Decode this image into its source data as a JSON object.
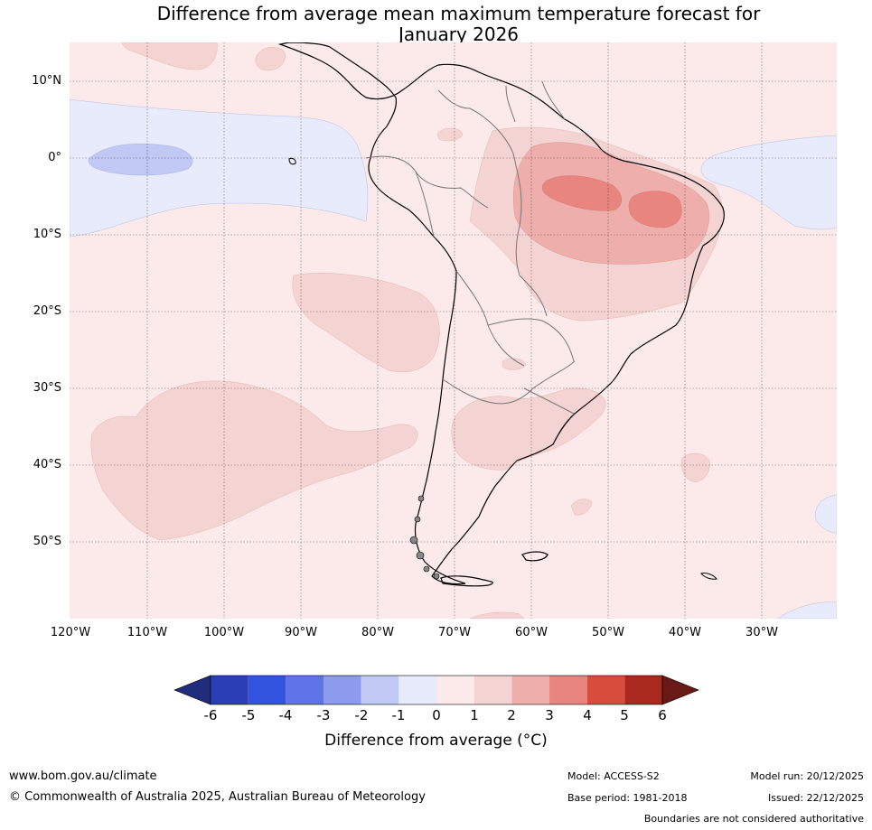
{
  "title": {
    "line1": "Difference from average mean maximum temperature forecast for",
    "line2": "January 2026"
  },
  "map": {
    "region": "South America",
    "lat_labels": [
      "10°N",
      "0°",
      "10°S",
      "20°S",
      "30°S",
      "40°S",
      "50°S"
    ],
    "lon_labels": [
      "120°W",
      "110°W",
      "100°W",
      "90°W",
      "80°W",
      "70°W",
      "60°W",
      "50°W",
      "40°W",
      "30°W"
    ],
    "lat_values": [
      10,
      0,
      -10,
      -20,
      -30,
      -40,
      -50
    ],
    "lon_values": [
      -120,
      -110,
      -100,
      -90,
      -80,
      -70,
      -60,
      -50,
      -40,
      -30
    ],
    "extent": {
      "lon_min": -120,
      "lon_max": -20,
      "lat_min": -60,
      "lat_max": 15
    },
    "anomaly_regions": [
      {
        "area": "Northern/north-eastern Brazil",
        "anomaly": "2 to 4 °C warmer"
      },
      {
        "area": "Central Brazil",
        "anomaly": "1 to 2 °C warmer"
      },
      {
        "area": "Eastern Pacific near the Equator",
        "anomaly": "-2 to 0 °C cooler"
      },
      {
        "area": "South-east Pacific",
        "anomaly": "1 to 2 °C warmer"
      },
      {
        "area": "Southern Brazil, Uruguay, Argentina",
        "anomaly": "0 to 2 °C warmer"
      },
      {
        "area": "Equatorial Atlantic",
        "anomaly": "-1 to 0 °C cooler"
      }
    ]
  },
  "colorbar": {
    "ticks": [
      "-6",
      "-5",
      "-4",
      "-3",
      "-2",
      "-1",
      "0",
      "1",
      "2",
      "3",
      "4",
      "5",
      "6"
    ],
    "colors": [
      "#1f2d7c",
      "#2a3fb5",
      "#3354de",
      "#5f74e6",
      "#8c9bee",
      "#c0c8f4",
      "#e8ebfb",
      "#fbeae9",
      "#f4d4d2",
      "#eeaeab",
      "#e8857f",
      "#d84c3e",
      "#a9291f",
      "#6a1a16"
    ],
    "label": "Difference from average (°C)"
  },
  "footer": {
    "website": "www.bom.gov.au/climate",
    "copyright": "© Commonwealth of Australia 2025, Australian Bureau of Meteorology",
    "model": "Model: ACCESS-S2",
    "base_period": "Base period: 1981-2018",
    "model_run": "Model run: 20/12/2025",
    "issued": "Issued: 22/12/2025",
    "disclaimer": "Boundaries are not considered authoritative"
  }
}
